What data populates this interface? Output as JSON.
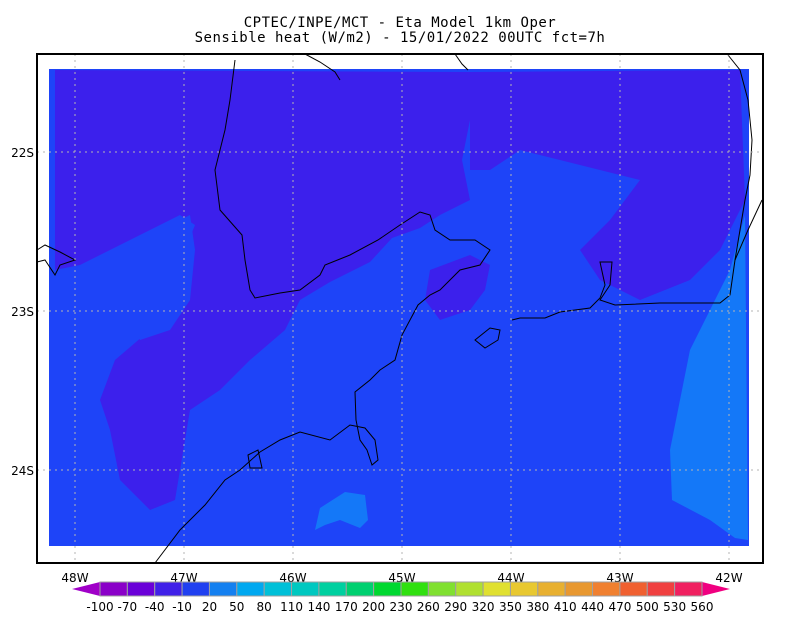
{
  "title": {
    "line1": "CPTEC/INPE/MCT -   Eta Model 1km Oper",
    "line2": "Sensible heat (W/m2) - 15/01/2022 00UTC fct=7h"
  },
  "map": {
    "lon_labels": [
      "48W",
      "47W",
      "46W",
      "45W",
      "44W",
      "43W",
      "42W"
    ],
    "lat_labels": [
      "22S",
      "23S",
      "24S"
    ],
    "colors": {
      "ocean_low": "#1e44f8",
      "land_purple": "#3c20ec",
      "light_blue": "#1478f8",
      "coast": "#000000",
      "grid": "#b4b4b4"
    }
  },
  "colorbar": {
    "labels": [
      "-100",
      "-70",
      "-40",
      "-10",
      "20",
      "50",
      "80",
      "110",
      "140",
      "170",
      "200",
      "230",
      "260",
      "290",
      "320",
      "350",
      "380",
      "410",
      "440",
      "470",
      "500",
      "530",
      "560"
    ],
    "colors": [
      "#8a00c8",
      "#6a00d8",
      "#4020e8",
      "#2040f0",
      "#1480f0",
      "#00a8f0",
      "#00c0d8",
      "#00c8c0",
      "#00d0a0",
      "#00d070",
      "#00d830",
      "#30e010",
      "#80e030",
      "#b0e030",
      "#e0e030",
      "#e8c830",
      "#e8b030",
      "#e89830",
      "#f08030",
      "#f06030",
      "#f04040",
      "#f02060"
    ],
    "under_color": "#a000c8",
    "over_color": "#f00080"
  }
}
